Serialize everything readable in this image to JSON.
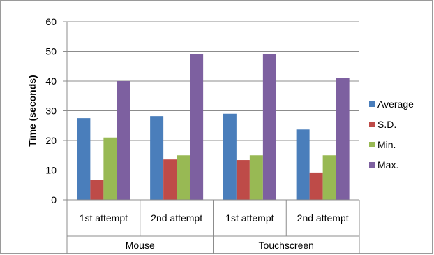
{
  "chart_data": {
    "type": "bar",
    "title": "",
    "xlabel": "",
    "ylabel": "Time (seconds)",
    "ylim": [
      0,
      60
    ],
    "yticks": [
      0,
      10,
      20,
      30,
      40,
      50,
      60
    ],
    "grid": true,
    "legend_position": "right",
    "categories": [
      "1st attempt",
      "2nd attempt",
      "1st attempt",
      "2nd attempt"
    ],
    "groups": [
      {
        "label": "Mouse",
        "categories": [
          "1st attempt",
          "2nd attempt"
        ]
      },
      {
        "label": "Touchscreen",
        "categories": [
          "1st attempt",
          "2nd attempt"
        ]
      }
    ],
    "series": [
      {
        "name": "Average",
        "color": "#4a7ebb",
        "values": [
          27.5,
          28.2,
          29,
          23.7
        ]
      },
      {
        "name": "S.D.",
        "color": "#be4b48",
        "values": [
          6.7,
          13.6,
          13.4,
          9.2
        ]
      },
      {
        "name": "Min.",
        "color": "#98b954",
        "values": [
          21,
          15,
          15,
          15
        ]
      },
      {
        "name": "Max.",
        "color": "#7d60a0",
        "values": [
          40,
          49,
          49,
          41
        ]
      }
    ]
  }
}
